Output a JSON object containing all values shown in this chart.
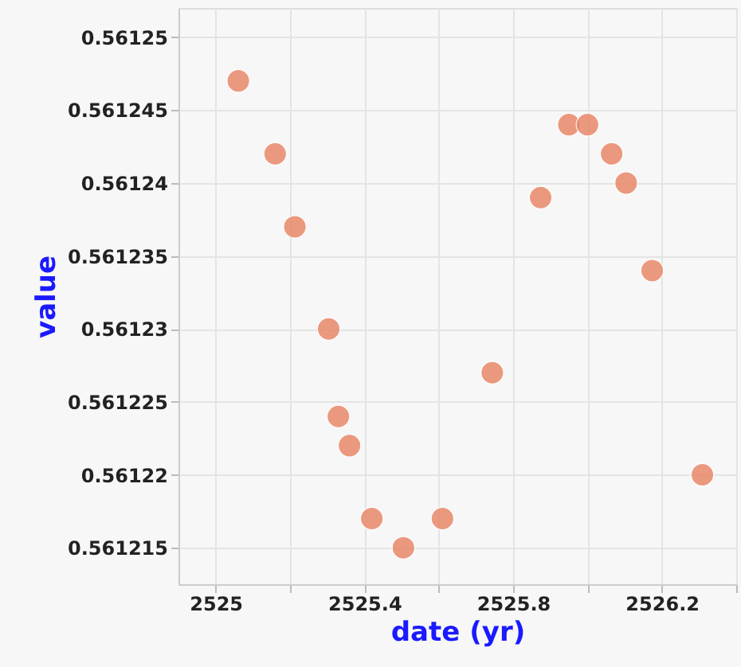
{
  "chart_data": {
    "type": "scatter",
    "xlabel": "date (yr)",
    "ylabel": "value",
    "x": [
      2525.061,
      2525.16,
      2525.213,
      2525.304,
      2525.33,
      2525.36,
      2525.42,
      2525.505,
      2525.61,
      2525.744,
      2525.874,
      2525.95,
      2526.0,
      2526.065,
      2526.104,
      2526.174,
      2526.309
    ],
    "series": [
      {
        "color": "#e8896a",
        "values": [
          0.561247,
          0.561242,
          0.561237,
          0.56123,
          0.561224,
          0.561222,
          0.561217,
          0.561215,
          0.561217,
          0.561227,
          0.561239,
          0.561244,
          0.561244,
          0.561242,
          0.56124,
          0.561234,
          0.56122
        ]
      }
    ],
    "xlim": [
      2524.9,
      2526.4
    ],
    "xticks": [
      2525,
      {
        "value": 2525.2,
        "label": null
      },
      2525.4,
      {
        "value": 2525.6,
        "label": null
      },
      2525.8,
      {
        "value": 2526.0,
        "label": null
      },
      2526.2,
      {
        "value": 2526.4,
        "label": null
      }
    ],
    "ylim": [
      0.5612125,
      0.561252
    ],
    "yticks": [
      0.561215,
      0.56122,
      0.561225,
      0.56123,
      0.561235,
      0.56124,
      0.561245,
      0.56125
    ],
    "grid": true
  }
}
